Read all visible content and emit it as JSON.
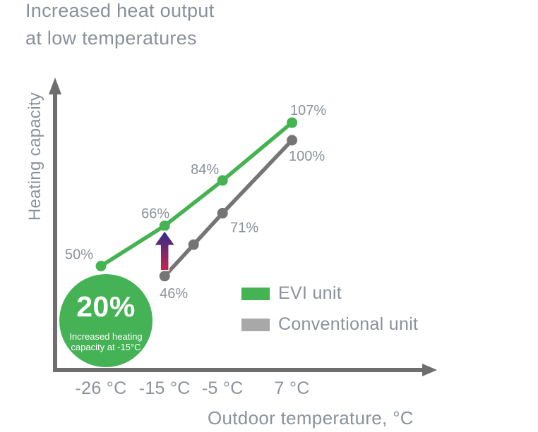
{
  "title": {
    "line1": "Increased heat output",
    "line2": "at low temperatures"
  },
  "chart_data": {
    "type": "line",
    "xlabel": "Outdoor temperature, °C",
    "ylabel": "Heating capacity",
    "x_ticks": [
      {
        "temp": -26,
        "label": "-26 °C"
      },
      {
        "temp": -15,
        "label": "-15 °C"
      },
      {
        "temp": -5,
        "label": "-5 °C"
      },
      {
        "temp": 7,
        "label": "7 °C"
      }
    ],
    "x_range": [
      -26,
      7
    ],
    "grid": "off",
    "legend_position": "bottom-right",
    "axis_color": "#6e6e6e",
    "text_color": "#8b929b",
    "series": [
      {
        "name": "Conventional unit",
        "color": "#757575",
        "legend_color": "#a8a8a8",
        "points": [
          {
            "temp": -15,
            "value": 46,
            "label": "46%",
            "label_dx": 13,
            "label_dy": 31
          },
          {
            "temp": -10,
            "value": 58.5,
            "label": "",
            "label_dx": 0,
            "label_dy": 0
          },
          {
            "temp": -5,
            "value": 71,
            "label": "71%",
            "label_dx": 31,
            "label_dy": 27
          },
          {
            "temp": 7,
            "value": 100,
            "label": "100%",
            "label_dx": 21,
            "label_dy": 29
          }
        ]
      },
      {
        "name": "EVI unit",
        "color": "#45b351",
        "legend_color": "#45b351",
        "points": [
          {
            "temp": -26,
            "value": 50,
            "label": "50%",
            "label_dx": -31,
            "label_dy": -10
          },
          {
            "temp": -15,
            "value": 66,
            "label": "66%",
            "label_dx": -13,
            "label_dy": -11
          },
          {
            "temp": -5,
            "value": 84,
            "label": "84%",
            "label_dx": -25,
            "label_dy": -9
          },
          {
            "temp": 7,
            "value": 107,
            "label": "107%",
            "label_dx": 23,
            "label_dy": -11
          }
        ]
      }
    ],
    "annotations": {
      "arrow": {
        "at_temp": -15,
        "from_value": 46,
        "to_value": 66,
        "gradient_bottom_color": "#c5234c",
        "gradient_top_color": "#2b2d90",
        "outline_color": "#ffffff"
      },
      "badge": {
        "value": "20%",
        "line1": "Increased heating",
        "line2": "capacity at -15°C",
        "background_color": "#45b355",
        "text_color": "#ffffff"
      }
    }
  }
}
